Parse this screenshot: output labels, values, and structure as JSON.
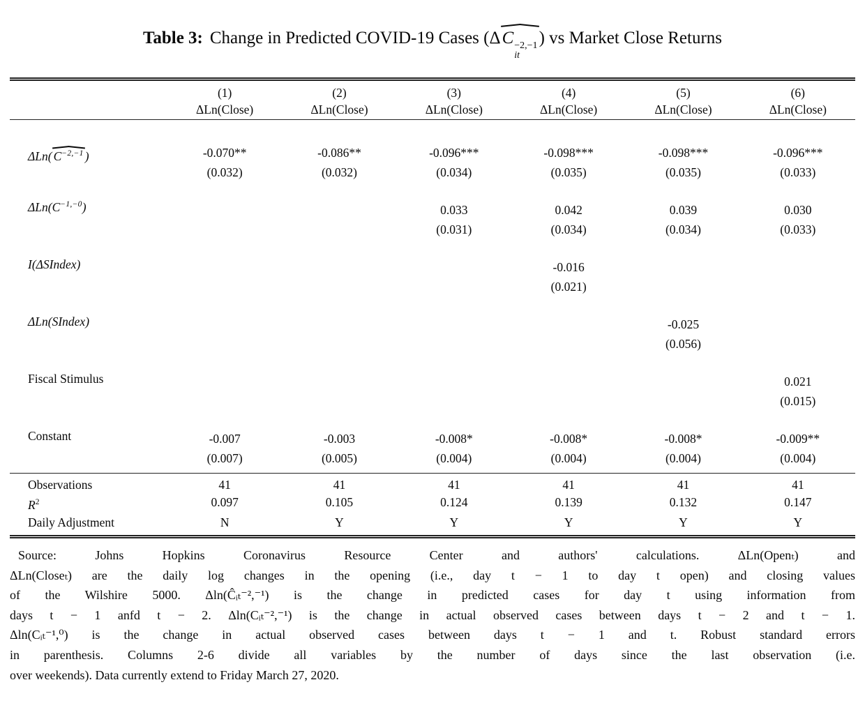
{
  "title": {
    "tag": "Table 3:",
    "before_math": "Change in Predicted COVID-19 Cases (",
    "math": {
      "delta": "Δ",
      "base": "C",
      "sup": "−2,−1",
      "sub": "it"
    },
    "after_math": ") vs Market Close Returns"
  },
  "table": {
    "col_numbers": [
      "(1)",
      "(2)",
      "(3)",
      "(4)",
      "(5)",
      "(6)"
    ],
    "dep_var_label": "ΔLn(Close)",
    "rows": [
      {
        "label": {
          "pre": "ΔLn(",
          "base": "C",
          "sup": "−2,−1",
          "post": ")"
        },
        "cells": [
          {
            "coef": "-0.070**",
            "se": "(0.032)"
          },
          {
            "coef": "-0.086**",
            "se": "(0.032)"
          },
          {
            "coef": "-0.096***",
            "se": "(0.034)"
          },
          {
            "coef": "-0.098***",
            "se": "(0.035)"
          },
          {
            "coef": "-0.098***",
            "se": "(0.035)"
          },
          {
            "coef": "-0.096***",
            "se": "(0.033)"
          }
        ]
      },
      {
        "label": {
          "pre": "ΔLn(",
          "base": "C",
          "sup": "−1,−0",
          "post": ")"
        },
        "cells": [
          {
            "coef": "",
            "se": ""
          },
          {
            "coef": "",
            "se": ""
          },
          {
            "coef": "0.033",
            "se": "(0.031)"
          },
          {
            "coef": "0.042",
            "se": "(0.034)"
          },
          {
            "coef": "0.039",
            "se": "(0.034)"
          },
          {
            "coef": "0.030",
            "se": "(0.033)"
          }
        ]
      },
      {
        "label": {
          "pre": "I(ΔSIndex)",
          "base": "",
          "sup": "",
          "post": ""
        },
        "cells": [
          {
            "coef": "",
            "se": ""
          },
          {
            "coef": "",
            "se": ""
          },
          {
            "coef": "",
            "se": ""
          },
          {
            "coef": "-0.016",
            "se": "(0.021)"
          },
          {
            "coef": "",
            "se": ""
          },
          {
            "coef": "",
            "se": ""
          }
        ]
      },
      {
        "label": {
          "pre": "ΔLn(SIndex)",
          "base": "",
          "sup": "",
          "post": ""
        },
        "cells": [
          {
            "coef": "",
            "se": ""
          },
          {
            "coef": "",
            "se": ""
          },
          {
            "coef": "",
            "se": ""
          },
          {
            "coef": "",
            "se": ""
          },
          {
            "coef": "-0.025",
            "se": "(0.056)"
          },
          {
            "coef": "",
            "se": ""
          }
        ]
      },
      {
        "label": {
          "pre": "Fiscal Stimulus",
          "base": "",
          "sup": "",
          "post": ""
        },
        "cells": [
          {
            "coef": "",
            "se": ""
          },
          {
            "coef": "",
            "se": ""
          },
          {
            "coef": "",
            "se": ""
          },
          {
            "coef": "",
            "se": ""
          },
          {
            "coef": "",
            "se": ""
          },
          {
            "coef": "0.021",
            "se": "(0.015)"
          }
        ]
      },
      {
        "label": {
          "pre": "Constant",
          "base": "",
          "sup": "",
          "post": ""
        },
        "cells": [
          {
            "coef": "-0.007",
            "se": "(0.007)"
          },
          {
            "coef": "-0.003",
            "se": "(0.005)"
          },
          {
            "coef": "-0.008*",
            "se": "(0.004)"
          },
          {
            "coef": "-0.008*",
            "se": "(0.004)"
          },
          {
            "coef": "-0.008*",
            "se": "(0.004)"
          },
          {
            "coef": "-0.009**",
            "se": "(0.004)"
          }
        ]
      }
    ],
    "stats": [
      {
        "label": "Observations",
        "values": [
          "41",
          "41",
          "41",
          "41",
          "41",
          "41"
        ]
      },
      {
        "label_base": "R",
        "label_sup": "2",
        "values": [
          "0.097",
          "0.105",
          "0.124",
          "0.139",
          "0.132",
          "0.147"
        ]
      },
      {
        "label": "Daily Adjustment",
        "values": [
          "N",
          "Y",
          "Y",
          "Y",
          "Y",
          "Y"
        ]
      }
    ]
  },
  "footnote": {
    "lines": [
      "Source: Johns Hopkins Coronavirus Resource Center and authors' calculations. ΔLn(Openₜ) and",
      "ΔLn(Closeₜ) are the daily log changes in the opening (i.e., day t − 1 to day t open) and closing values",
      "of the Wilshire 5000. Δln(Ĉᵢₜ⁻²,⁻¹) is the change in predicted cases for day t using information from",
      "days t − 1 anfd t − 2. Δln(Cᵢₜ⁻²,⁻¹) is the change in actual observed cases between days t − 2 and t − 1.",
      "Δln(Cᵢₜ⁻¹,⁰) is the change in actual observed cases between days t − 1 and t. Robust standard errors",
      "in parenthesis. Columns 2-6 divide all variables by the number of days since the last observation (i.e.",
      "over weekends). Data currently extend to Friday March 27, 2020."
    ]
  }
}
